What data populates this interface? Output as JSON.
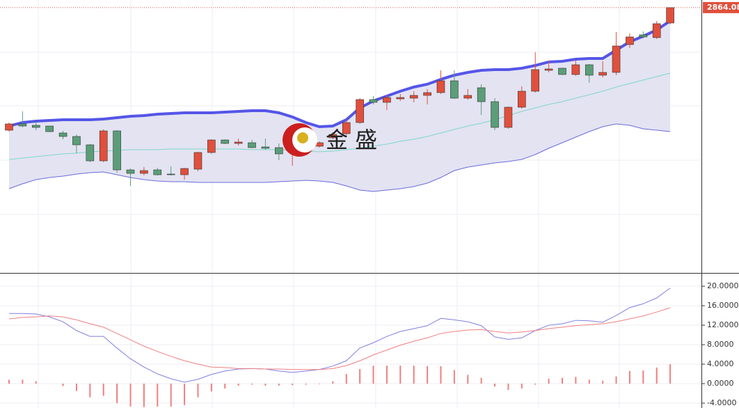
{
  "chart_data": [
    {
      "type": "candlestick",
      "open": [
        2688,
        2697,
        2695,
        2694,
        2684,
        2679,
        2667,
        2644,
        2687,
        2631,
        2626,
        2631,
        2625,
        2624,
        2632,
        2656,
        2674,
        2669,
        2670,
        2664,
        2663,
        2663,
        2665,
        2665,
        2677,
        2683,
        2699,
        2732,
        2728,
        2733,
        2734,
        2738,
        2742,
        2759,
        2734,
        2749,
        2729,
        2692,
        2721,
        2744,
        2774,
        2777,
        2768,
        2782,
        2767,
        2771,
        2811,
        2825,
        2821,
        2842
      ],
      "high": [
        2699,
        2715,
        2699,
        2694,
        2687,
        2682,
        2668,
        2689,
        2688,
        2633,
        2635,
        2634,
        2636,
        2634,
        2657,
        2675,
        2675,
        2676,
        2674,
        2676,
        2669,
        2680,
        2673,
        2672,
        2685,
        2703,
        2734,
        2737,
        2738,
        2740,
        2744,
        2747,
        2774,
        2774,
        2747,
        2754,
        2734,
        2722,
        2751,
        2800,
        2788,
        2778,
        2788,
        2783,
        2787,
        2829,
        2827,
        2830,
        2845,
        2864.08
      ],
      "low": [
        2686,
        2692,
        2688,
        2685,
        2675,
        2655,
        2642,
        2642,
        2627,
        2608,
        2623,
        2623,
        2623,
        2617,
        2629,
        2654,
        2668,
        2666,
        2662,
        2660,
        2645,
        2637,
        2661,
        2663,
        2675,
        2681,
        2697,
        2725,
        2717,
        2730,
        2728,
        2725,
        2740,
        2733,
        2732,
        2710,
        2688,
        2690,
        2719,
        2742,
        2771,
        2767,
        2766,
        2756,
        2764,
        2767,
        2806,
        2820,
        2819,
        2840
      ],
      "close": [
        2697,
        2694,
        2692,
        2686,
        2679,
        2667,
        2644,
        2687,
        2631,
        2626,
        2630,
        2624,
        2624,
        2633,
        2656,
        2674,
        2669,
        2671,
        2663,
        2662,
        2654,
        2669,
        2670,
        2670,
        2682,
        2699,
        2732,
        2728,
        2735,
        2735,
        2738,
        2742,
        2759,
        2734,
        2738,
        2729,
        2692,
        2721,
        2744,
        2775,
        2776,
        2768,
        2782,
        2767,
        2771,
        2809,
        2822,
        2822,
        2841,
        2864.08
      ],
      "up_color": "#e0503c",
      "down_color": "#5a9e78",
      "ylim": [
        2483,
        2875
      ],
      "watermark": "金 盛",
      "band_fill": "#e3e3f2",
      "bands": [
        {
          "color": "#5555e8",
          "values": [
            2694,
            2699,
            2701,
            2702,
            2703,
            2703,
            2703,
            2704,
            2706,
            2708,
            2709,
            2711,
            2712,
            2713,
            2713,
            2713,
            2714,
            2715,
            2716,
            2716,
            2713,
            2707,
            2699,
            2693,
            2694,
            2703,
            2720,
            2730,
            2737,
            2744,
            2750,
            2754,
            2761,
            2767,
            2771,
            2774,
            2775,
            2775,
            2777,
            2781,
            2786,
            2787,
            2790,
            2791,
            2791,
            2803,
            2815,
            2823,
            2832,
            2845
          ]
        },
        {
          "color": "#7fd8c8",
          "values": [
            2646,
            2648,
            2650,
            2652,
            2654,
            2655,
            2657,
            2658,
            2659,
            2660,
            2660,
            2660,
            2661,
            2661,
            2661,
            2661,
            2661,
            2661,
            2660,
            2660,
            2660,
            2659,
            2658,
            2657,
            2658,
            2660,
            2662,
            2665,
            2668,
            2672,
            2675,
            2679,
            2684,
            2689,
            2694,
            2698,
            2703,
            2709,
            2715,
            2720,
            2725,
            2729,
            2734,
            2739,
            2744,
            2750,
            2755,
            2760,
            2765,
            2770
          ]
        },
        {
          "color": "#6b6bdc",
          "values": [
            2604,
            2611,
            2617,
            2620,
            2622,
            2625,
            2627,
            2628,
            2624,
            2620,
            2617,
            2615,
            2614,
            2614,
            2613,
            2613,
            2613,
            2613,
            2613,
            2613,
            2614,
            2615,
            2616,
            2615,
            2613,
            2608,
            2602,
            2600,
            2602,
            2604,
            2607,
            2612,
            2620,
            2630,
            2635,
            2638,
            2641,
            2643,
            2646,
            2653,
            2662,
            2670,
            2678,
            2686,
            2693,
            2697,
            2695,
            2690,
            2688,
            2686
          ]
        }
      ]
    },
    {
      "type": "macd",
      "series": [
        {
          "color": "#7f7fe0",
          "values": [
            14.4,
            14.4,
            14.3,
            13.7,
            12.7,
            10.9,
            9.7,
            9.7,
            7.3,
            5.1,
            3.4,
            2.0,
            1.0,
            0.3,
            0.9,
            1.9,
            2.6,
            3.0,
            3.1,
            3.0,
            2.6,
            2.3,
            2.6,
            2.9,
            3.6,
            4.7,
            7.3,
            8.4,
            9.7,
            10.7,
            11.3,
            11.9,
            13.4,
            13.1,
            12.7,
            11.9,
            9.6,
            9.1,
            9.4,
            10.9,
            12.0,
            12.3,
            13.0,
            12.9,
            12.6,
            14.0,
            15.6,
            16.4,
            17.6,
            19.6
          ]
        },
        {
          "color": "#f07f7f",
          "values": [
            13.3,
            13.6,
            13.7,
            13.9,
            13.7,
            13.1,
            12.3,
            11.6,
            10.3,
            9.0,
            7.7,
            6.6,
            5.6,
            4.7,
            4.0,
            3.4,
            3.3,
            3.1,
            3.1,
            3.0,
            3.0,
            2.9,
            2.9,
            2.9,
            3.1,
            3.7,
            4.7,
            5.9,
            6.9,
            7.9,
            8.7,
            9.4,
            10.3,
            10.7,
            11.0,
            11.1,
            10.7,
            10.4,
            10.6,
            10.9,
            11.3,
            11.6,
            11.9,
            12.1,
            12.3,
            12.7,
            13.3,
            13.9,
            14.7,
            15.6
          ]
        },
        {
          "kind": "bar",
          "color": "#f07f7f",
          "values": [
            0.8,
            0.8,
            0.5,
            0,
            -0.5,
            -1.5,
            -2.8,
            -2.5,
            -4.0,
            -4.7,
            -4.8,
            -4.7,
            -4.7,
            -4.4,
            -2.8,
            -1.6,
            -1.0,
            -0.4,
            -0.2,
            -0.4,
            -0.4,
            -0.3,
            -0.2,
            -0.1,
            0.5,
            2.0,
            3.0,
            3.7,
            3.7,
            3.7,
            3.7,
            3.6,
            3.6,
            2.8,
            1.8,
            1.2,
            -0.6,
            -1.3,
            -1.0,
            -0.2,
            1.0,
            1.2,
            1.4,
            0.8,
            0.6,
            1.5,
            2.6,
            2.7,
            3.3,
            4.0
          ]
        }
      ],
      "ylim": [
        -5,
        22.3
      ],
      "yticks": [
        {
          "value": 20,
          "label": "20.0000"
        },
        {
          "value": 16,
          "label": "16.0000"
        },
        {
          "value": 12,
          "label": "12.0000"
        },
        {
          "value": 8,
          "label": "8.0000"
        },
        {
          "value": 4,
          "label": "4.0000"
        },
        {
          "value": 0,
          "label": "0.0000"
        },
        {
          "value": -4,
          "label": "-4.0000"
        }
      ],
      "grid": true
    }
  ]
}
